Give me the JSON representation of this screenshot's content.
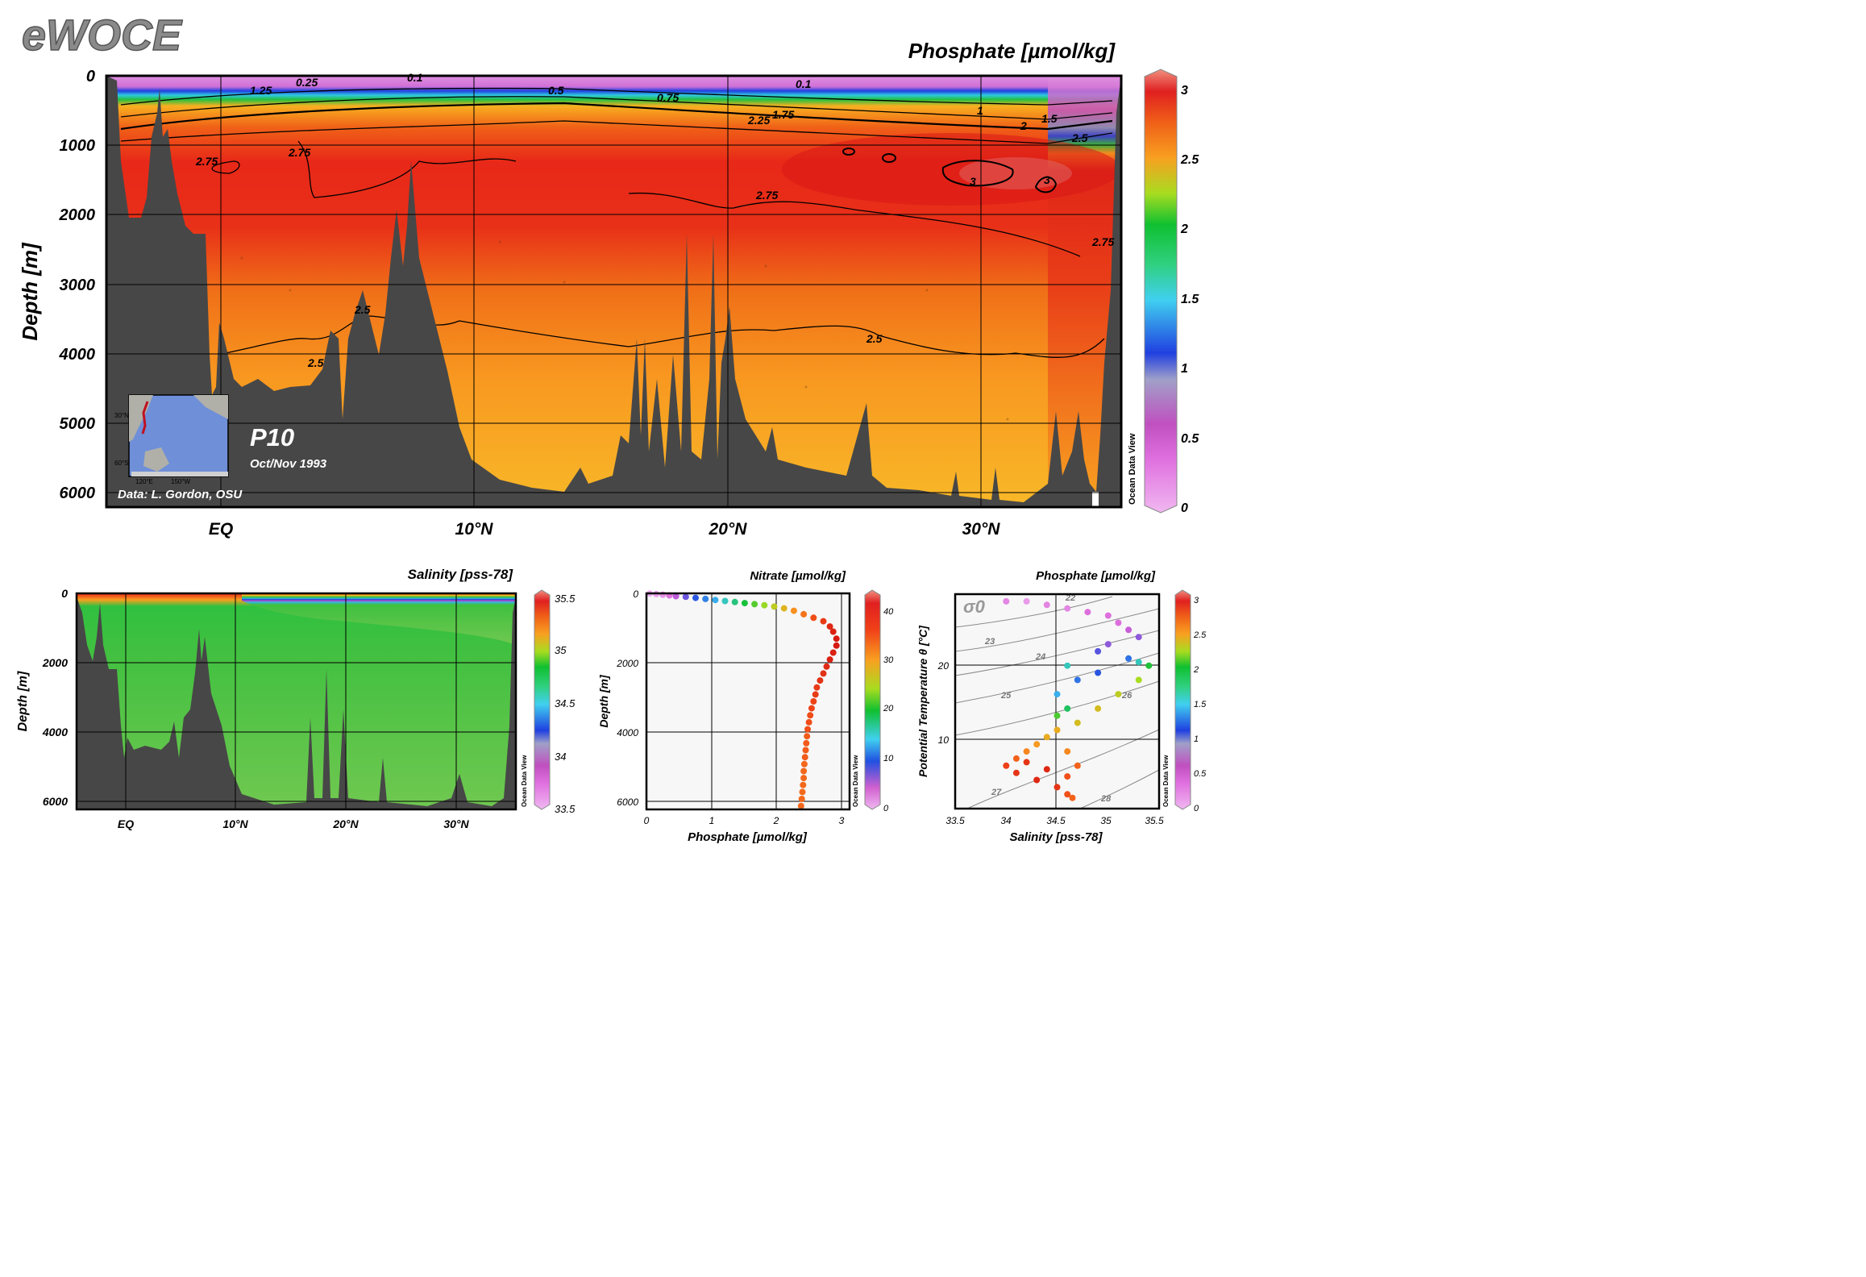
{
  "brand": "eWOCE",
  "watermark": "Ocean Data View",
  "colors": {
    "bathymetry": "#474747",
    "rainbow": [
      "#f0a8f0",
      "#d86ad8",
      "#c04cc0",
      "#a8a0c8",
      "#2040e0",
      "#40c8f0",
      "#30d090",
      "#18c838",
      "#a0dc20",
      "#f8c020",
      "#f89820",
      "#f05818",
      "#e02020",
      "#c81010",
      "#f08a7a"
    ]
  },
  "main_section": {
    "title": "Phosphate [µmol/kg]",
    "ylabel": "Depth [m]",
    "yticks": [
      "0",
      "1000",
      "2000",
      "3000",
      "4000",
      "5000",
      "6000"
    ],
    "xticks": [
      "EQ",
      "10°N",
      "20°N",
      "30°N"
    ],
    "cruise": "P10",
    "date": "Oct/Nov 1993",
    "credit": "Data: L. Gordon, OSU",
    "map_labels": {
      "lat_n": "30°N",
      "lat_s": "60°S",
      "lon_w": "120°E",
      "lon_e": "150°W"
    },
    "contour_labels": [
      "0.1",
      "0.25",
      "0.1",
      "0.1",
      "1.25",
      "0.5",
      "0.75",
      "1.75",
      "2.25",
      "1",
      "2",
      "1.5",
      "2.5",
      "2.75",
      "2.75",
      "3",
      "3",
      "2.75",
      "2.75",
      "2.5",
      "2.5",
      "2.5"
    ],
    "colorbar": {
      "min": 0,
      "max": 3,
      "ticks": [
        "3",
        "2.5",
        "2",
        "1.5",
        "1",
        "0.5",
        "0"
      ]
    }
  },
  "salinity_section": {
    "title": "Salinity [pss-78]",
    "ylabel": "Depth [m]",
    "yticks": [
      "0",
      "2000",
      "4000",
      "6000"
    ],
    "xticks": [
      "EQ",
      "10°N",
      "20°N",
      "30°N"
    ],
    "colorbar": {
      "min": 33.5,
      "max": 35.5,
      "ticks": [
        "35.5",
        "35",
        "34.5",
        "34",
        "33.5"
      ]
    }
  },
  "chart_data": [
    {
      "type": "heatmap",
      "title": "Phosphate [µmol/kg]",
      "variable": "Phosphate",
      "units": "µmol/kg",
      "xlabel": "",
      "ylabel": "Depth [m]",
      "x_range_deg_N": [
        -4.5,
        35.5
      ],
      "ylim": [
        6200,
        0
      ],
      "note_values": {
        "surface_min": 0.1,
        "deep_max": 3.0,
        "abyssal": 2.5
      }
    },
    {
      "type": "heatmap",
      "title": "Salinity [pss-78]",
      "variable": "Salinity",
      "units": "pss-78",
      "ylabel": "Depth [m]",
      "x_range_deg_N": [
        -4.5,
        35.5
      ],
      "ylim": [
        6200,
        0
      ]
    },
    {
      "type": "scatter",
      "title": "Nitrate [µmol/kg]",
      "xlabel": "Phosphate [µmol/kg]",
      "ylabel": "Depth [m]",
      "xlim": [
        0,
        3.1
      ],
      "ylim": [
        6200,
        0
      ],
      "xticks": [
        "0",
        "1",
        "2",
        "3"
      ],
      "yticks": [
        "0",
        "2000",
        "4000",
        "6000"
      ],
      "color_variable": "Nitrate [µmol/kg]",
      "colorbar": {
        "min": 0,
        "max": 44,
        "ticks": [
          "40",
          "30",
          "20",
          "10",
          "0"
        ]
      },
      "points": [
        [
          0.05,
          5,
          0
        ],
        [
          0.15,
          20,
          1
        ],
        [
          0.25,
          40,
          2
        ],
        [
          0.35,
          60,
          4
        ],
        [
          0.45,
          80,
          6
        ],
        [
          0.6,
          100,
          8
        ],
        [
          0.75,
          130,
          10
        ],
        [
          0.9,
          160,
          12
        ],
        [
          1.05,
          190,
          14
        ],
        [
          1.2,
          220,
          17
        ],
        [
          1.35,
          250,
          19
        ],
        [
          1.5,
          280,
          21
        ],
        [
          1.65,
          310,
          23
        ],
        [
          1.8,
          340,
          25
        ],
        [
          1.95,
          380,
          27
        ],
        [
          2.1,
          430,
          29
        ],
        [
          2.25,
          500,
          32
        ],
        [
          2.4,
          600,
          34
        ],
        [
          2.55,
          700,
          37
        ],
        [
          2.7,
          800,
          39
        ],
        [
          2.8,
          950,
          41
        ],
        [
          2.85,
          1100,
          42
        ],
        [
          2.9,
          1300,
          43
        ],
        [
          2.9,
          1500,
          43
        ],
        [
          2.85,
          1700,
          42
        ],
        [
          2.8,
          1900,
          42
        ],
        [
          2.75,
          2100,
          41
        ],
        [
          2.7,
          2300,
          40
        ],
        [
          2.65,
          2500,
          40
        ],
        [
          2.6,
          2700,
          39
        ],
        [
          2.58,
          2900,
          39
        ],
        [
          2.55,
          3100,
          38
        ],
        [
          2.52,
          3300,
          38
        ],
        [
          2.5,
          3500,
          37
        ],
        [
          2.48,
          3700,
          37
        ],
        [
          2.46,
          3900,
          37
        ],
        [
          2.45,
          4100,
          36
        ],
        [
          2.44,
          4300,
          36
        ],
        [
          2.43,
          4500,
          36
        ],
        [
          2.42,
          4700,
          36
        ],
        [
          2.41,
          4900,
          35
        ],
        [
          2.4,
          5100,
          35
        ],
        [
          2.4,
          5300,
          35
        ],
        [
          2.39,
          5500,
          35
        ],
        [
          2.38,
          5700,
          35
        ],
        [
          2.37,
          5900,
          35
        ],
        [
          2.36,
          6100,
          35
        ]
      ]
    },
    {
      "type": "scatter",
      "title": "Phosphate [µmol/kg]",
      "xlabel": "Salinity [pss-78]",
      "ylabel": "Potential Temperature θ [°C]",
      "xlim": [
        33.5,
        35.5
      ],
      "ylim": [
        0,
        30
      ],
      "xticks": [
        "33.5",
        "34",
        "34.5",
        "35",
        "35.5"
      ],
      "yticks": [
        "10",
        "20"
      ],
      "color_variable": "Phosphate [µmol/kg]",
      "isopycnal_symbol": "σ0",
      "isopycnals": [
        "22",
        "23",
        "24",
        "25",
        "26",
        "27",
        "28"
      ],
      "colorbar": {
        "min": 0,
        "max": 3.1,
        "ticks": [
          "3",
          "2.5",
          "2",
          "1.5",
          "1",
          "0.5",
          "0"
        ]
      },
      "points": [
        [
          34.0,
          29,
          0.2
        ],
        [
          34.2,
          29,
          0.1
        ],
        [
          34.4,
          28.5,
          0.2
        ],
        [
          34.6,
          28,
          0.2
        ],
        [
          34.8,
          27.5,
          0.3
        ],
        [
          35.0,
          27,
          0.3
        ],
        [
          35.1,
          26,
          0.3
        ],
        [
          35.2,
          25,
          0.4
        ],
        [
          35.3,
          24,
          0.5
        ],
        [
          35.0,
          23,
          0.5
        ],
        [
          34.9,
          22,
          0.6
        ],
        [
          35.2,
          21,
          0.8
        ],
        [
          35.3,
          20.5,
          1.2
        ],
        [
          35.4,
          20,
          1.5
        ],
        [
          35.3,
          18,
          1.8
        ],
        [
          35.1,
          16,
          1.9
        ],
        [
          34.9,
          14,
          2.0
        ],
        [
          34.7,
          12,
          2.0
        ],
        [
          34.5,
          11,
          2.1
        ],
        [
          34.3,
          9,
          2.2
        ],
        [
          34.2,
          8,
          2.3
        ],
        [
          34.1,
          7,
          2.5
        ],
        [
          34.0,
          6,
          2.7
        ],
        [
          34.1,
          5,
          2.8
        ],
        [
          34.3,
          4,
          2.9
        ],
        [
          34.5,
          3,
          2.8
        ],
        [
          34.6,
          2,
          2.6
        ],
        [
          34.65,
          1.5,
          2.5
        ],
        [
          34.6,
          14,
          1.4
        ],
        [
          34.5,
          16,
          1.0
        ],
        [
          34.7,
          18,
          0.8
        ],
        [
          34.9,
          19,
          0.7
        ],
        [
          34.6,
          20,
          1.2
        ],
        [
          34.5,
          13,
          1.6
        ],
        [
          34.4,
          10,
          2.1
        ],
        [
          34.6,
          8,
          2.3
        ],
        [
          34.7,
          6,
          2.5
        ],
        [
          34.6,
          4.5,
          2.6
        ],
        [
          34.4,
          5.5,
          2.9
        ],
        [
          34.2,
          6.5,
          2.8
        ]
      ]
    }
  ]
}
